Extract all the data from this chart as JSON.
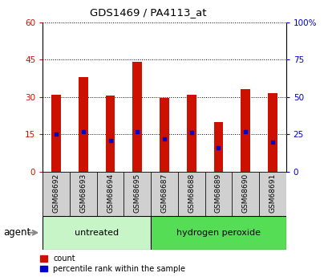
{
  "title": "GDS1469 / PA4113_at",
  "samples": [
    "GSM68692",
    "GSM68693",
    "GSM68694",
    "GSM68695",
    "GSM68687",
    "GSM68688",
    "GSM68689",
    "GSM68690",
    "GSM68691"
  ],
  "counts": [
    31,
    38,
    30.5,
    44,
    29.5,
    31,
    20,
    33,
    31.5
  ],
  "percentile_ranks": [
    25,
    27,
    21,
    27,
    22,
    26,
    16,
    27,
    20
  ],
  "groups": [
    "untreated",
    "untreated",
    "untreated",
    "untreated",
    "hydrogen peroxide",
    "hydrogen peroxide",
    "hydrogen peroxide",
    "hydrogen peroxide",
    "hydrogen peroxide"
  ],
  "bar_color": "#CC1100",
  "dot_color": "#0000CC",
  "left_ylim": [
    0,
    60
  ],
  "right_ylim": [
    0,
    100
  ],
  "left_yticks": [
    0,
    15,
    30,
    45,
    60
  ],
  "right_yticks": [
    0,
    25,
    50,
    75,
    100
  ],
  "right_yticklabels": [
    "0",
    "25",
    "50",
    "75",
    "100%"
  ],
  "left_ycolor": "#CC1100",
  "right_ycolor": "#0000CC",
  "agent_label": "agent",
  "legend_count": "count",
  "legend_percentile": "percentile rank within the sample",
  "untreated_color": "#c8f5c8",
  "hp_color": "#55dd55",
  "tick_bg_color": "#d0d0d0",
  "bar_width": 0.35
}
